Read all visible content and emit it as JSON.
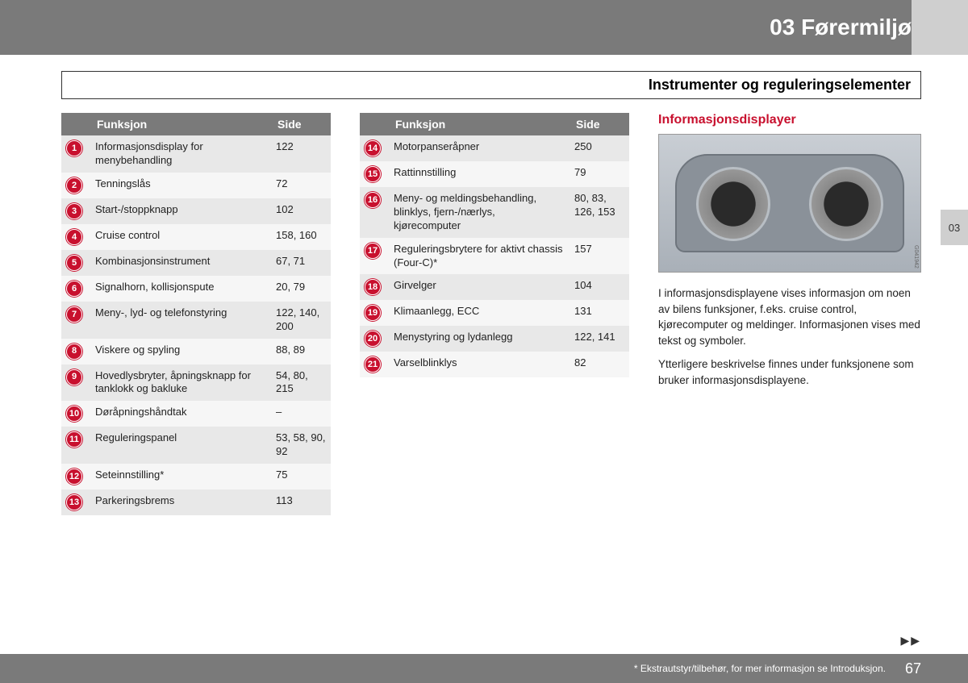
{
  "header": {
    "chapter": "03 Førermiljø",
    "subheader": "Instrumenter og reguleringselementer"
  },
  "colors": {
    "header_bg": "#7a7a7a",
    "accent": "#c8102e",
    "row_odd": "#e8e8e8",
    "row_even": "#f6f6f6",
    "tab_bg": "#cfcfcf"
  },
  "table_headers": {
    "func": "Funksjon",
    "page": "Side"
  },
  "table1": [
    {
      "n": 1,
      "func": "Informasjonsdisplay for menybehandling",
      "page": "122"
    },
    {
      "n": 2,
      "func": "Tenningslås",
      "page": "72"
    },
    {
      "n": 3,
      "func": "Start-/stoppknapp",
      "page": "102"
    },
    {
      "n": 4,
      "func": "Cruise control",
      "page": "158, 160"
    },
    {
      "n": 5,
      "func": "Kombinasjonsinstrument",
      "page": "67, 71"
    },
    {
      "n": 6,
      "func": "Signalhorn, kollisjonspute",
      "page": "20, 79"
    },
    {
      "n": 7,
      "func": "Meny-, lyd- og telefonstyring",
      "page": "122, 140, 200"
    },
    {
      "n": 8,
      "func": "Viskere og spyling",
      "page": "88, 89"
    },
    {
      "n": 9,
      "func": "Hovedlysbryter, åpningsknapp for tanklokk og bakluke",
      "page": "54, 80, 215"
    },
    {
      "n": 10,
      "func": "Døråpningshåndtak",
      "page": "–"
    },
    {
      "n": 11,
      "func": "Reguleringspanel",
      "page": "53, 58, 90, 92"
    },
    {
      "n": 12,
      "func": "Seteinnstilling*",
      "page": "75"
    },
    {
      "n": 13,
      "func": "Parkeringsbrems",
      "page": "113"
    }
  ],
  "table2": [
    {
      "n": 14,
      "func": "Motorpanseråpner",
      "page": "250"
    },
    {
      "n": 15,
      "func": "Rattinnstilling",
      "page": "79"
    },
    {
      "n": 16,
      "func": "Meny- og meldingsbehandling, blinklys, fjern-/nærlys, kjørecomputer",
      "page": "80, 83, 126, 153"
    },
    {
      "n": 17,
      "func": "Reguleringsbrytere for aktivt chassis (Four-C)*",
      "page": "157"
    },
    {
      "n": 18,
      "func": "Girvelger",
      "page": "104"
    },
    {
      "n": 19,
      "func": "Klimaanlegg, ECC",
      "page": "131"
    },
    {
      "n": 20,
      "func": "Menystyring og lydanlegg",
      "page": "122, 141"
    },
    {
      "n": 21,
      "func": "Varselblinklys",
      "page": "82"
    }
  ],
  "info": {
    "heading": "Informasjonsdisplayer",
    "figure_code": "G041942",
    "p1": "I informasjonsdisplayene vises informasjon om noen av bilens funksjoner, f.eks. cruise control, kjørecomputer og meldinger. Informasjonen vises med tekst og symboler.",
    "p2": "Ytterligere beskrivelse finnes under funksjonene som bruker informasjonsdisplayene."
  },
  "side_tab": "03",
  "footer": {
    "note": "* Ekstrautstyr/tilbehør, for mer informasjon se Introduksjon.",
    "page": "67",
    "cont": "▶▶"
  }
}
